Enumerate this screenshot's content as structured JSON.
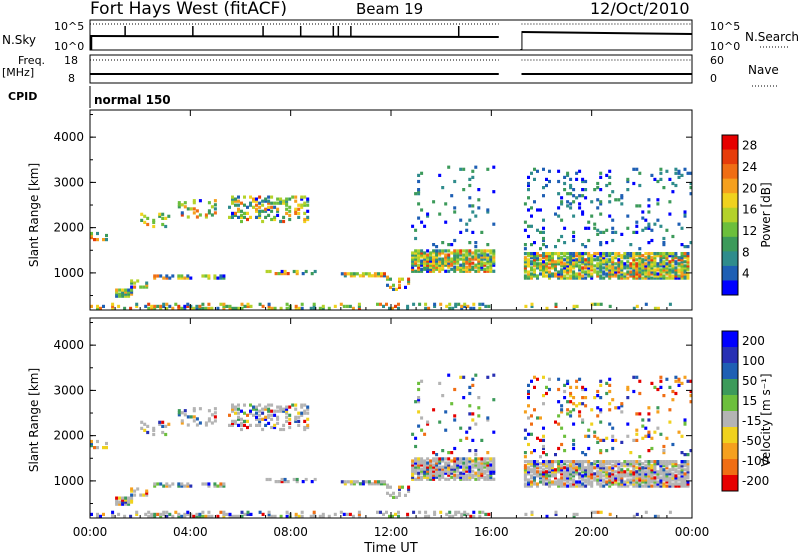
{
  "header": {
    "station": "Fort Hays West (fitACF)",
    "beam": "Beam 19",
    "date": "12/Oct/2010"
  },
  "status_panels": {
    "nsky_label": "N.Sky",
    "nsearch_label": "N.Search",
    "nsky_ticks": [
      "10^5",
      "10^0"
    ],
    "nsearch_ticks": [
      "10^5",
      "10^0"
    ],
    "freq_label": "Freq.",
    "freq_unit": "[MHz]",
    "freq_ticks": [
      "18",
      "8"
    ],
    "nave_label": "Nave",
    "nave_ticks": [
      "60",
      "0"
    ],
    "cpid_label": "CPID",
    "cpid_value": "normal 150",
    "data_gap_hours": [
      16.3,
      17.2
    ]
  },
  "colors": {
    "power": [
      "#0000ff",
      "#1e5fb4",
      "#2f8c8c",
      "#3c9a5a",
      "#6cbf3c",
      "#b4d22a",
      "#f0d21e",
      "#f5a01e",
      "#f06e14",
      "#e63c0a",
      "#e60000"
    ],
    "velocity": [
      "#e60000",
      "#f06e14",
      "#f5a01e",
      "#f0d21e",
      "#b4b4b4",
      "#6cbf3c",
      "#3c9a5a",
      "#1e5fb4",
      "#2830b4",
      "#0000ff"
    ]
  },
  "chart_data": [
    {
      "type": "heatmap",
      "name": "power",
      "ylabel": "Slant Range [km]",
      "ylim": [
        180,
        4600
      ],
      "yticks": [
        "1000",
        "2000",
        "3000",
        "4000"
      ],
      "xlim": [
        0,
        24
      ],
      "colorbar_label": "Power [dB]",
      "colorbar_ticks": [
        "4",
        "8",
        "12",
        "16",
        "20",
        "24",
        "28"
      ],
      "colorbar_range": [
        0,
        30
      ]
    },
    {
      "type": "heatmap",
      "name": "velocity",
      "ylabel": "Slant Range [km]",
      "ylim": [
        180,
        4600
      ],
      "yticks": [
        "1000",
        "2000",
        "3000",
        "4000"
      ],
      "xlim": [
        0,
        24
      ],
      "colorbar_label": "Velocity [m s⁻¹]",
      "colorbar_ticks": [
        "200",
        "100",
        "50",
        "15",
        "-15",
        "-50",
        "-100",
        "-200"
      ],
      "colorbar_range": [
        -250,
        250
      ]
    }
  ],
  "xaxis": {
    "label": "Time UT",
    "ticks": [
      "00:00",
      "04:00",
      "08:00",
      "12:00",
      "16:00",
      "20:00",
      "00:00"
    ],
    "tick_hours": [
      0,
      4,
      8,
      12,
      16,
      20,
      24
    ]
  }
}
